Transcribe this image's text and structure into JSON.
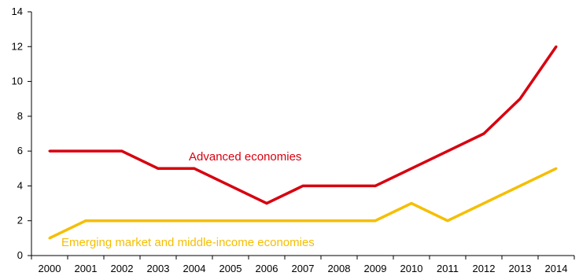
{
  "chart_data": {
    "type": "line",
    "title": "",
    "xlabel": "",
    "ylabel": "",
    "x": [
      "2000",
      "2001",
      "2002",
      "2003",
      "2004",
      "2005",
      "2006",
      "2007",
      "2008",
      "2009",
      "2010",
      "2011",
      "2012",
      "2013",
      "2014"
    ],
    "ylim": [
      0,
      14
    ],
    "yticks": [
      "0",
      "2",
      "4",
      "6",
      "8",
      "10",
      "12",
      "14"
    ],
    "grid": false,
    "legend": "inline labels",
    "series": [
      {
        "name": "Advanced economies",
        "color": "#d7000f",
        "values": [
          6,
          6,
          6,
          5,
          5,
          4,
          3,
          4,
          4,
          4,
          5,
          6,
          7,
          9,
          12
        ]
      },
      {
        "name": "Emerging market and middle-income economies",
        "color": "#f5be00",
        "values": [
          1,
          2,
          2,
          2,
          2,
          2,
          2,
          2,
          2,
          2,
          3,
          2,
          3,
          4,
          5
        ]
      }
    ]
  }
}
